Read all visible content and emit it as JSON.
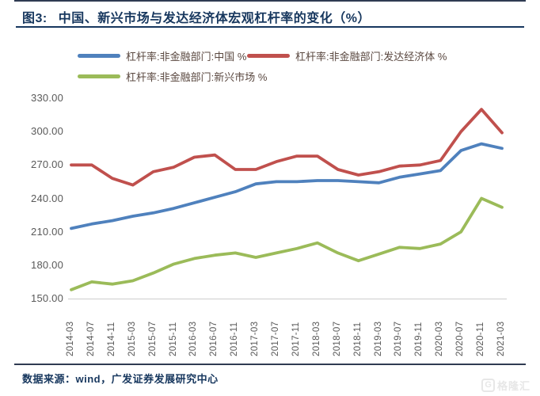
{
  "figure": {
    "tag": "图3:",
    "title": "中国、新兴市场与发达经济体宏观杠杆率的变化（%）",
    "source": "数据来源：wind，广发证券发展研究中心",
    "watermark": {
      "badge": "G",
      "text": "格隆汇"
    }
  },
  "chart_data": {
    "type": "line",
    "title": "中国、新兴市场与发达经济体宏观杠杆率的变化（%）",
    "xlabel": "",
    "ylabel": "",
    "ylim": [
      150,
      330
    ],
    "yticks": [
      "150.00",
      "180.00",
      "210.00",
      "240.00",
      "270.00",
      "300.00",
      "330.00"
    ],
    "grid": false,
    "legend_position": "top",
    "categories": [
      "2014-03",
      "2014-07",
      "2014-11",
      "2015-03",
      "2015-07",
      "2015-11",
      "2016-03",
      "2016-07",
      "2016-11",
      "2017-03",
      "2017-07",
      "2017-11",
      "2018-03",
      "2018-07",
      "2018-11",
      "2019-03",
      "2019-07",
      "2019-11",
      "2020-03",
      "2020-07",
      "2020-11",
      "2021-03"
    ],
    "series": [
      {
        "id": "china",
        "name": "杠杆率:非金融部门:中国 %",
        "color": "#4f81bd",
        "values": [
          213,
          217,
          220,
          224,
          227,
          231,
          236,
          241,
          246,
          253,
          255,
          255,
          256,
          256,
          255,
          254,
          259,
          262,
          265,
          283,
          289,
          285
        ]
      },
      {
        "id": "developed",
        "name": "杠杆率:非金融部门:发达经济体 %",
        "color": "#c0504d",
        "values": [
          270,
          270,
          258,
          252,
          264,
          268,
          277,
          279,
          266,
          266,
          273,
          278,
          278,
          266,
          261,
          264,
          269,
          270,
          274,
          300,
          320,
          299
        ]
      },
      {
        "id": "emerging",
        "name": "杠杆率:非金融部门:新兴市场 %",
        "color": "#9bbb59",
        "values": [
          158,
          165,
          163,
          166,
          173,
          181,
          186,
          189,
          191,
          187,
          191,
          195,
          200,
          191,
          184,
          190,
          196,
          195,
          199,
          210,
          240,
          232
        ]
      }
    ]
  }
}
